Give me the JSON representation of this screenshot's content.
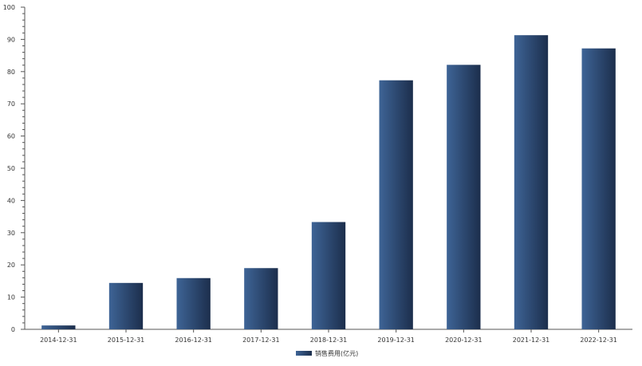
{
  "chart_data": {
    "type": "bar",
    "categories": [
      "2014-12-31",
      "2015-12-31",
      "2016-12-31",
      "2017-12-31",
      "2018-12-31",
      "2019-12-31",
      "2020-12-31",
      "2021-12-31",
      "2022-12-31"
    ],
    "series": [
      {
        "name": "销售费用(亿元)",
        "values": [
          1.2,
          14.4,
          15.9,
          19.0,
          33.3,
          77.3,
          82.1,
          91.3,
          87.2
        ]
      }
    ],
    "title": "",
    "xlabel": "",
    "ylabel": "",
    "ylim": [
      0,
      100
    ],
    "yticks": [
      "0",
      "10",
      "20",
      "30",
      "40",
      "50",
      "60",
      "70",
      "80",
      "90",
      "100"
    ],
    "grid": false,
    "legend_position": "bottom-center",
    "colors": {
      "bar_light": "#3e6496",
      "bar_dark": "#1c2e4c",
      "axis": "#555555"
    }
  }
}
